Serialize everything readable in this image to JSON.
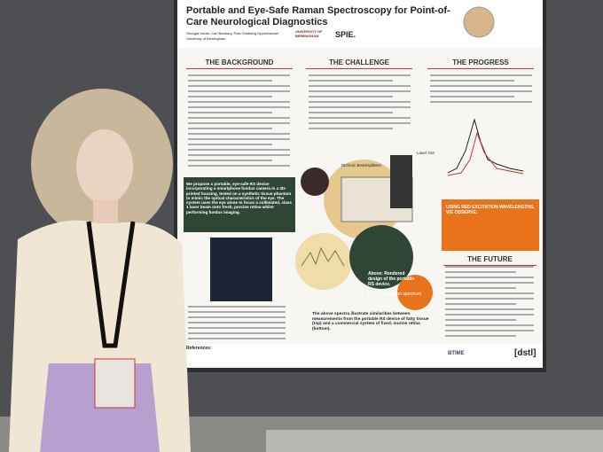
{
  "poster": {
    "title": "Portable and Eye-Safe Raman Spectroscopy for Point-of-Care Neurological Diagnostics",
    "authors": "Georgia Harris, Carl Banbury, Pola Goldberg Oppenheimer",
    "affiliation": "University of Birmingham",
    "logos": [
      "UNIVERSITY OF BIRMINGHAM",
      "SPIE."
    ],
    "sections": [
      "THE BACKGROUND",
      "THE CHALLENGE",
      "THE PROGRESS",
      "THE FUTURE"
    ],
    "proposal": "We propose a portable, eye-safe RS device incorporating a smartphone fundus camera in a 3D-printed housing, tested on a synthetic tissue phantom to mimic the optical characteristics of the eye. The system uses the eye alone to focus a collimated, class 1 laser beam onto fresh, porcine retina whilst performing fundus imaging.",
    "observe": "USING RED EXCITATION WAVELENGTHS, WE OBSERVE:",
    "labels": [
      "Dichroic Beamsplitters",
      "Laser Out"
    ],
    "render_caption": "Above: Rendered design of the portable RS device.",
    "left_caption": "Left: Comparison spectrum",
    "spectra_caption": "The above spectra illustrate similarities between measurements from the portable RS device of fatty tissue (top) and a commercial system of fixed, murine retina (bottom).",
    "references": "References:",
    "footer_logos": [
      "BTIME",
      "[dstl]"
    ]
  }
}
